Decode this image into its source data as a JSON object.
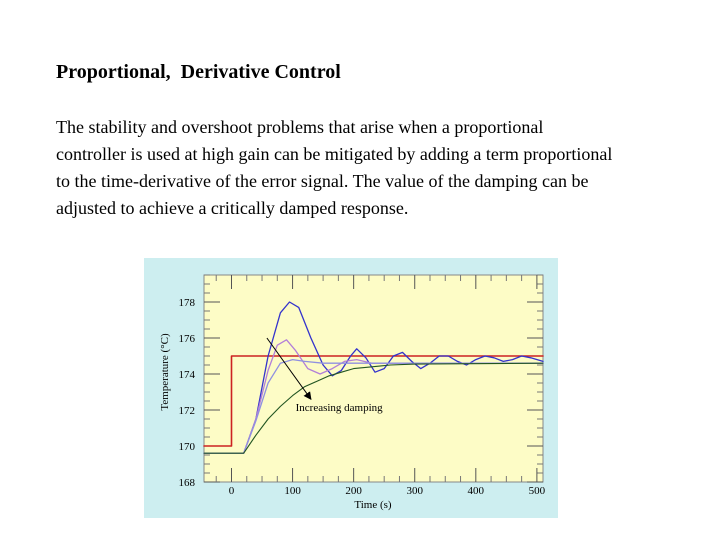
{
  "slide": {
    "title": "Proportional,  Derivative Control",
    "body_lines": [
      "The stability and overshoot problems that arise when a  proportional",
      "controller is used at high gain can be mitigated by adding a term proportional",
      "to the time-derivative of the error signal. The value of the damping can be",
      "adjusted to achieve a critically damped response."
    ]
  },
  "colors": {
    "figure_bg": "#cdeef0",
    "plot_bg": "#fdfcc6",
    "setpoint": "#cc2222",
    "low_damping": "#3333cc",
    "medium_damping": "#b27fd8",
    "higher_damping": "#9090e0",
    "critical_damping": "#225522",
    "annotation_arrow": "#000000"
  },
  "chart_data": {
    "type": "line",
    "xlabel": "Time (s)",
    "ylabel": "Temperature (°C)",
    "xlim": [
      -45,
      510
    ],
    "ylim": [
      168,
      179.5
    ],
    "x_ticks": [
      0,
      100,
      200,
      300,
      400,
      500
    ],
    "x_tick_labels": [
      "0",
      "100",
      "200",
      "300",
      "400",
      "500"
    ],
    "y_ticks": [
      168,
      170,
      172,
      174,
      176,
      178
    ],
    "y_tick_labels": [
      "168",
      "170",
      "172",
      "174",
      "176",
      "178"
    ],
    "grid": false,
    "series": [
      {
        "color": "#cc2222",
        "width": 1.6,
        "points": [
          [
            -45,
            170
          ],
          [
            0,
            170
          ],
          [
            0,
            175
          ],
          [
            510,
            175
          ]
        ]
      },
      {
        "color": "#3333cc",
        "width": 1.3,
        "points": [
          [
            -45,
            169.6
          ],
          [
            0,
            169.6
          ],
          [
            20,
            169.6
          ],
          [
            40,
            171.5
          ],
          [
            60,
            175.0
          ],
          [
            80,
            177.4
          ],
          [
            95,
            178.0
          ],
          [
            110,
            177.7
          ],
          [
            130,
            176.0
          ],
          [
            150,
            174.5
          ],
          [
            165,
            173.9
          ],
          [
            180,
            174.2
          ],
          [
            195,
            175.0
          ],
          [
            205,
            175.4
          ],
          [
            220,
            174.9
          ],
          [
            235,
            174.1
          ],
          [
            250,
            174.3
          ],
          [
            265,
            175.0
          ],
          [
            280,
            175.2
          ],
          [
            295,
            174.7
          ],
          [
            310,
            174.3
          ],
          [
            325,
            174.6
          ],
          [
            340,
            175.0
          ],
          [
            355,
            175.0
          ],
          [
            370,
            174.7
          ],
          [
            385,
            174.5
          ],
          [
            400,
            174.8
          ],
          [
            415,
            175.0
          ],
          [
            430,
            174.9
          ],
          [
            445,
            174.7
          ],
          [
            460,
            174.8
          ],
          [
            475,
            175.0
          ],
          [
            490,
            174.9
          ],
          [
            510,
            174.7
          ]
        ]
      },
      {
        "color": "#b27fd8",
        "width": 1.3,
        "points": [
          [
            -45,
            169.6
          ],
          [
            0,
            169.6
          ],
          [
            20,
            169.6
          ],
          [
            40,
            171.5
          ],
          [
            60,
            174.2
          ],
          [
            75,
            175.6
          ],
          [
            90,
            175.9
          ],
          [
            105,
            175.3
          ],
          [
            125,
            174.3
          ],
          [
            145,
            174.0
          ],
          [
            165,
            174.3
          ],
          [
            185,
            174.7
          ],
          [
            205,
            174.8
          ],
          [
            230,
            174.6
          ],
          [
            260,
            174.6
          ],
          [
            300,
            174.6
          ],
          [
            510,
            174.6
          ]
        ]
      },
      {
        "color": "#9090e0",
        "width": 1.3,
        "points": [
          [
            -45,
            169.6
          ],
          [
            0,
            169.6
          ],
          [
            20,
            169.6
          ],
          [
            40,
            171.4
          ],
          [
            60,
            173.5
          ],
          [
            80,
            174.6
          ],
          [
            100,
            174.8
          ],
          [
            120,
            174.7
          ],
          [
            150,
            174.6
          ],
          [
            200,
            174.6
          ],
          [
            510,
            174.6
          ]
        ]
      },
      {
        "color": "#225522",
        "width": 1.1,
        "points": [
          [
            -45,
            169.6
          ],
          [
            0,
            169.6
          ],
          [
            20,
            169.6
          ],
          [
            40,
            170.6
          ],
          [
            60,
            171.5
          ],
          [
            80,
            172.2
          ],
          [
            100,
            172.8
          ],
          [
            120,
            173.3
          ],
          [
            140,
            173.6
          ],
          [
            160,
            173.9
          ],
          [
            180,
            174.1
          ],
          [
            200,
            174.3
          ],
          [
            230,
            174.4
          ],
          [
            260,
            174.5
          ],
          [
            300,
            174.55
          ],
          [
            510,
            174.6
          ]
        ]
      }
    ],
    "annotations": [
      {
        "text": "Increasing damping",
        "x": 105,
        "y": 171.95,
        "arrow_from": [
          58,
          176.0
        ],
        "arrow_to": [
          130,
          172.6
        ]
      }
    ]
  }
}
